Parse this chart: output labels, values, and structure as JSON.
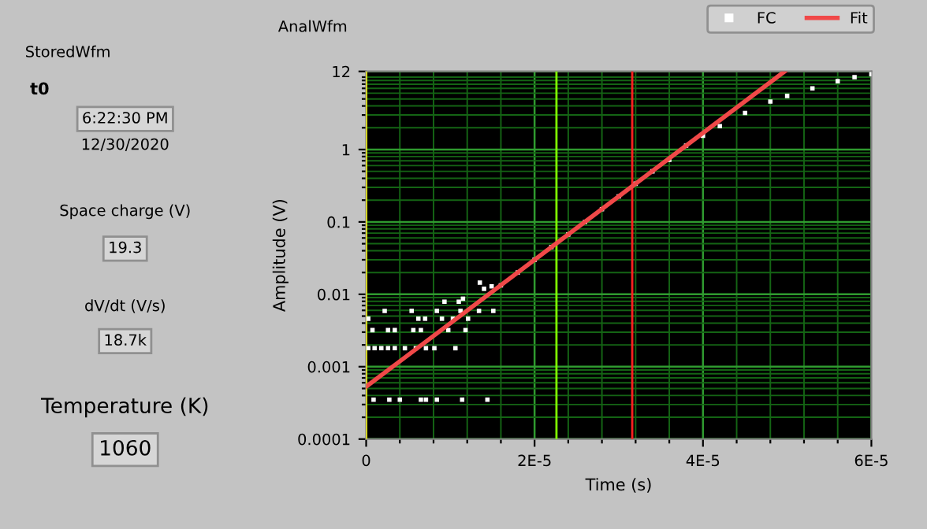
{
  "chart_data": [
    {
      "type": "other",
      "annotations": [
        "StoredWfm",
        "t0",
        "6:22:30 PM",
        "12/30/2020",
        "Space charge (V)",
        "19.3",
        "dV/dt (V/s)",
        "18.7k",
        "Temperature (K)",
        "1060"
      ]
    },
    {
      "type": "scatter",
      "title": "AnalWfm",
      "xlabel": "Time (s)",
      "ylabel": "Amplitude (V)",
      "log": "y",
      "grid": true,
      "legend": "top right",
      "xlim": [
        0,
        6e-05
      ],
      "ylim": [
        0.0001,
        12
      ],
      "xticks": [
        0,
        {
          "value": 4e-06,
          "label": null
        },
        {
          "value": 8e-06,
          "label": null
        },
        {
          "value": 1.2e-05,
          "label": null
        },
        {
          "value": 1.6e-05,
          "label": null
        },
        {
          "value": 2e-05,
          "label": "2E-5"
        },
        {
          "value": 2.4e-05,
          "label": null
        },
        {
          "value": 2.8e-05,
          "label": null
        },
        {
          "value": 3.2e-05,
          "label": null
        },
        {
          "value": 3.6e-05,
          "label": null
        },
        {
          "value": 4e-05,
          "label": "4E-5"
        },
        {
          "value": 4.4e-05,
          "label": null
        },
        {
          "value": 4.8e-05,
          "label": null
        },
        {
          "value": 5.2e-05,
          "label": null
        },
        {
          "value": 5.6e-05,
          "label": null
        },
        {
          "value": 6e-05,
          "label": "6E-5"
        }
      ],
      "yticks": [
        0.0001,
        {
          "value": 0.0002,
          "label": null
        },
        {
          "value": 0.0003,
          "label": null
        },
        {
          "value": 0.0004,
          "label": null
        },
        {
          "value": 0.0005,
          "label": null
        },
        {
          "value": 0.0006,
          "label": null
        },
        {
          "value": 0.0007,
          "label": null
        },
        {
          "value": 0.0008,
          "label": null
        },
        {
          "value": 0.0009,
          "label": null
        },
        0.001,
        {
          "value": 0.002,
          "label": null
        },
        {
          "value": 0.003,
          "label": null
        },
        {
          "value": 0.004,
          "label": null
        },
        {
          "value": 0.005,
          "label": null
        },
        {
          "value": 0.006,
          "label": null
        },
        {
          "value": 0.007,
          "label": null
        },
        {
          "value": 0.008,
          "label": null
        },
        {
          "value": 0.009,
          "label": null
        },
        0.01,
        {
          "value": 0.02,
          "label": null
        },
        {
          "value": 0.03,
          "label": null
        },
        {
          "value": 0.04,
          "label": null
        },
        {
          "value": 0.05,
          "label": null
        },
        {
          "value": 0.06,
          "label": null
        },
        {
          "value": 0.07,
          "label": null
        },
        {
          "value": 0.08,
          "label": null
        },
        {
          "value": 0.09,
          "label": null
        },
        0.1,
        {
          "value": 0.2,
          "label": null
        },
        {
          "value": 0.3,
          "label": null
        },
        {
          "value": 0.4,
          "label": null
        },
        {
          "value": 0.5,
          "label": null
        },
        {
          "value": 0.6,
          "label": null
        },
        {
          "value": 0.7,
          "label": null
        },
        {
          "value": 0.8,
          "label": null
        },
        {
          "value": 0.9,
          "label": null
        },
        1,
        {
          "value": 2,
          "label": null
        },
        {
          "value": 3,
          "label": null
        },
        {
          "value": 4,
          "label": null
        },
        {
          "value": 5,
          "label": null
        },
        {
          "value": 6,
          "label": null
        },
        {
          "value": 7,
          "label": null
        },
        {
          "value": 8,
          "label": null
        },
        {
          "value": 9,
          "label": null
        },
        {
          "value": 10,
          "label": null
        },
        12
      ],
      "ref_lines": [
        {
          "axis": "x",
          "value": 0,
          "color": "#ffff00"
        },
        {
          "axis": "x",
          "value": 2.26e-05,
          "color": "#80ff00"
        },
        {
          "axis": "x",
          "value": 3.16e-05,
          "color": "#ff2020"
        }
      ],
      "series": [
        {
          "name": "FC",
          "type": "scatter",
          "marker": "square",
          "color": "#ffffff",
          "x": [
            8.8e-07,
            2.75e-06,
            4e-06,
            6.5e-06,
            7.1e-06,
            8.4e-06,
            1.14e-05,
            1.44e-05,
            2.5e-07,
            1e-06,
            1.8e-06,
            2.6e-06,
            3.4e-06,
            4.6e-06,
            5.9e-06,
            7.1e-06,
            8.1e-06,
            1.06e-05,
            7.5e-07,
            2.6e-06,
            3.4e-06,
            5.6e-06,
            6.5e-06,
            9.75e-06,
            1.18e-05,
            2.5e-07,
            2.2e-06,
            5.4e-06,
            6.2e-06,
            7e-06,
            8.4e-06,
            9e-06,
            1.03e-05,
            1.12e-05,
            1.21e-05,
            1.34e-05,
            1.51e-05,
            9.3e-06,
            1.1e-05,
            1.15e-05,
            1.4e-05,
            1.35e-05,
            1.49e-05,
            1.6e-05,
            1.8e-05,
            2e-05,
            2.2e-05,
            2.4e-05,
            2.6e-05,
            2.8e-05,
            3e-05,
            3.2e-05,
            3.4e-05,
            3.6e-05,
            3.8e-05,
            4e-05,
            4.2e-05,
            4.5e-05,
            4.8e-05,
            5e-05,
            5.3e-05,
            5.6e-05,
            5.8e-05,
            6e-05
          ],
          "values": [
            0.00035,
            0.00035,
            0.00035,
            0.00035,
            0.00035,
            0.00035,
            0.00035,
            0.00035,
            0.0018,
            0.0018,
            0.0018,
            0.0018,
            0.0018,
            0.0018,
            0.0018,
            0.0018,
            0.0018,
            0.0018,
            0.0032,
            0.0032,
            0.0032,
            0.0032,
            0.0032,
            0.0032,
            0.0032,
            0.0046,
            0.0059,
            0.0059,
            0.0046,
            0.0046,
            0.0059,
            0.0046,
            0.0046,
            0.0059,
            0.0046,
            0.0059,
            0.0059,
            0.0079,
            0.0079,
            0.0087,
            0.0119,
            0.0145,
            0.0129,
            0.0133,
            0.02,
            0.03,
            0.045,
            0.067,
            0.1,
            0.15,
            0.225,
            0.337,
            0.5,
            0.72,
            1.13,
            1.55,
            2.1,
            3.2,
            4.6,
            5.5,
            7.0,
            8.8,
            10,
            11
          ]
        },
        {
          "name": "Fit",
          "type": "line",
          "marker": "none",
          "line_style": "solid",
          "color": "#f04848",
          "x": [
            0,
            4.97e-05
          ],
          "values": [
            0.00053,
            12
          ]
        }
      ]
    }
  ]
}
